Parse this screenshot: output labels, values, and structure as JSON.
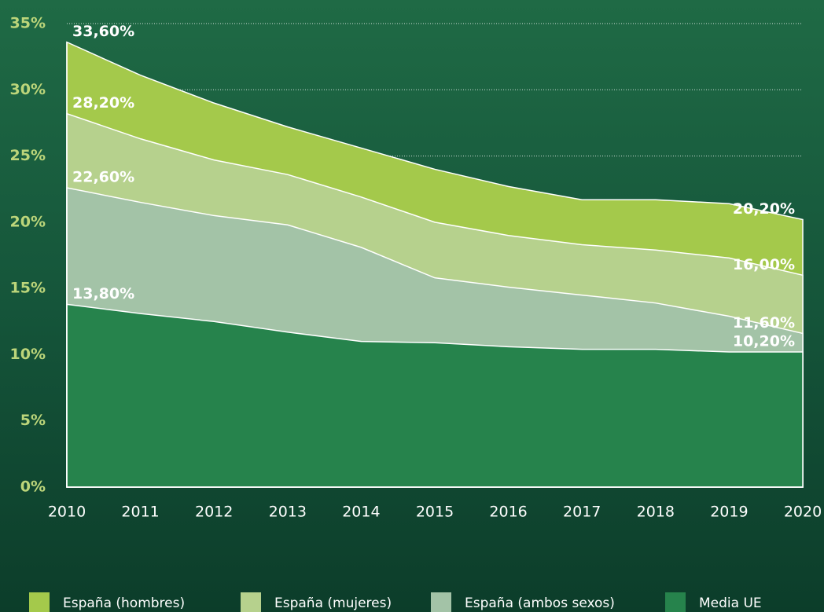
{
  "chart_data": {
    "type": "area",
    "categories": [
      "2010",
      "2011",
      "2012",
      "2013",
      "2014",
      "2015",
      "2016",
      "2017",
      "2018",
      "2019",
      "2020"
    ],
    "series": [
      {
        "name": "España (hombres)",
        "color": "#a4c94b",
        "values": [
          33.6,
          31.1,
          29.0,
          27.2,
          25.6,
          24.0,
          22.7,
          21.7,
          21.7,
          21.4,
          20.2
        ],
        "value_labels": [
          "33,60%",
          null,
          null,
          null,
          null,
          null,
          null,
          null,
          null,
          null,
          "20,20%"
        ]
      },
      {
        "name": "España (mujeres)",
        "color": "#b6d18d",
        "values": [
          28.2,
          26.3,
          24.7,
          23.6,
          21.9,
          20.0,
          19.0,
          18.3,
          17.9,
          17.3,
          16.0
        ],
        "value_labels": [
          "28,20%",
          null,
          null,
          null,
          null,
          null,
          null,
          null,
          null,
          null,
          "16,00%"
        ]
      },
      {
        "name": "España (ambos sexos)",
        "color": "#a3c3a7",
        "values": [
          22.6,
          21.5,
          20.5,
          19.8,
          18.1,
          15.8,
          15.1,
          14.5,
          13.9,
          12.9,
          11.6
        ],
        "value_labels": [
          "22,60%",
          null,
          null,
          null,
          null,
          null,
          null,
          null,
          null,
          null,
          "11,60%"
        ]
      },
      {
        "name": "Media UE",
        "color": "#26834c",
        "values": [
          13.8,
          13.1,
          12.5,
          11.7,
          11.0,
          10.9,
          10.6,
          10.4,
          10.4,
          10.2,
          10.2
        ],
        "value_labels": [
          "13,80%",
          null,
          null,
          null,
          null,
          null,
          null,
          null,
          null,
          null,
          "10,20%"
        ]
      }
    ],
    "ylim": [
      0,
      35
    ],
    "yticks": [
      {
        "value": 0,
        "label": "0%"
      },
      {
        "value": 5,
        "label": "5%"
      },
      {
        "value": 10,
        "label": "10%"
      },
      {
        "value": 15,
        "label": "15%"
      },
      {
        "value": 20,
        "label": "20%"
      },
      {
        "value": 25,
        "label": "25%"
      },
      {
        "value": 30,
        "label": "30%"
      },
      {
        "value": 35,
        "label": "35%"
      }
    ],
    "grid": true
  }
}
